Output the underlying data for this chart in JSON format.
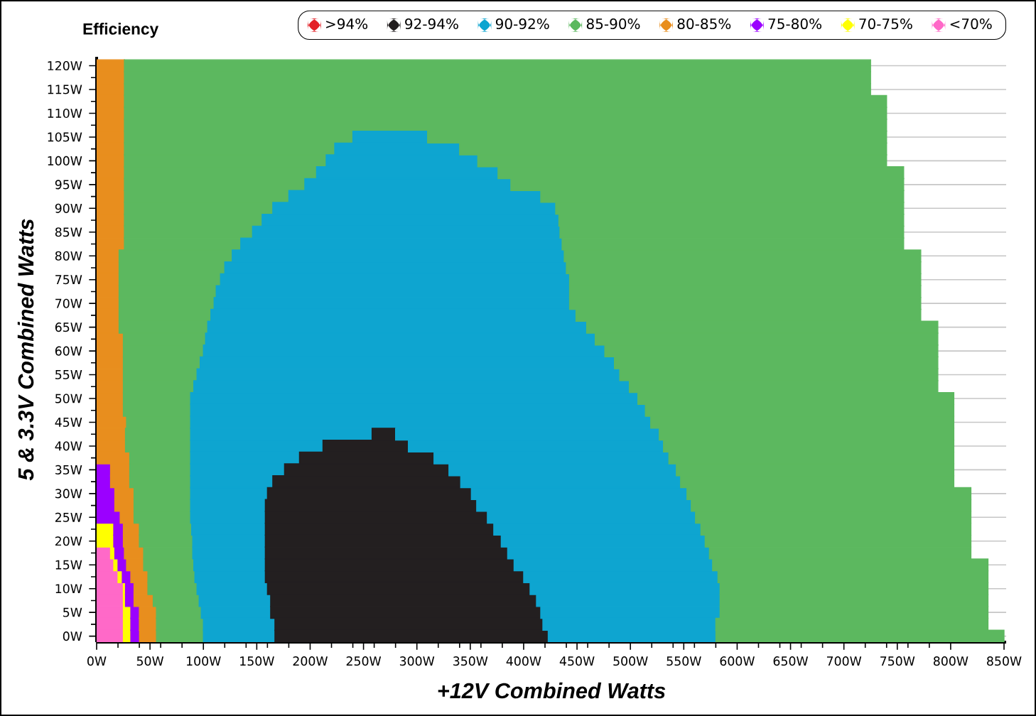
{
  "chart_data": {
    "type": "bar",
    "orientation": "horizontal",
    "stacked": true,
    "title": "Efficiency",
    "xlabel": "+12V Combined Watts",
    "ylabel": "5 & 3.3V Combined Watts",
    "categories": [
      "120W",
      null,
      "115W",
      null,
      "110W",
      null,
      "105W",
      null,
      "100W",
      null,
      "95W",
      null,
      "90W",
      null,
      "85W",
      null,
      "80W",
      null,
      "75W",
      null,
      "70W",
      null,
      "65W",
      null,
      "60W",
      null,
      "55W",
      null,
      "50W",
      null,
      "45W",
      null,
      "40W",
      null,
      "35W",
      null,
      "30W",
      null,
      "25W",
      null,
      "20W",
      null,
      "15W",
      null,
      "10W",
      null,
      "5W",
      null,
      "0W"
    ],
    "xlim": [
      0,
      852
    ],
    "xticks": [
      {
        "value": 0,
        "label": "0W"
      },
      {
        "value": 50,
        "label": "50W"
      },
      {
        "value": 100,
        "label": "100W"
      },
      {
        "value": 150,
        "label": "150W"
      },
      {
        "value": 200,
        "label": "200W"
      },
      {
        "value": 250,
        "label": "250W"
      },
      {
        "value": 300,
        "label": "300W"
      },
      {
        "value": 350,
        "label": "350W"
      },
      {
        "value": 400,
        "label": "400W"
      },
      {
        "value": 450,
        "label": "450W"
      },
      {
        "value": 500,
        "label": "500W"
      },
      {
        "value": 550,
        "label": "550W"
      },
      {
        "value": 600,
        "label": "600W"
      },
      {
        "value": 650,
        "label": "650W"
      },
      {
        "value": 700,
        "label": "700W"
      },
      {
        "value": 750,
        "label": "750W"
      },
      {
        "value": 800,
        "label": "800W"
      },
      {
        "value": 850,
        "label": "850W"
      }
    ],
    "grid": "y",
    "legend": "top right",
    "series": [
      {
        "name": "<70%",
        "color": "#ff69c8",
        "values": [
          null,
          null,
          null,
          null,
          null,
          null,
          null,
          null,
          null,
          null,
          null,
          null,
          null,
          null,
          null,
          null,
          null,
          null,
          null,
          null,
          null,
          null,
          null,
          null,
          null,
          null,
          null,
          null,
          null,
          null,
          null,
          null,
          null,
          null,
          null,
          null,
          null,
          null,
          null,
          null,
          null,
          13,
          16,
          20,
          25,
          25,
          25,
          25,
          25
        ]
      },
      {
        "name": "70-75%",
        "color": "#ffff00",
        "values": [
          null,
          null,
          null,
          null,
          null,
          null,
          null,
          null,
          null,
          null,
          null,
          null,
          null,
          null,
          null,
          null,
          null,
          null,
          null,
          null,
          null,
          null,
          null,
          null,
          null,
          null,
          null,
          null,
          null,
          null,
          null,
          null,
          null,
          null,
          null,
          null,
          null,
          null,
          null,
          16,
          16,
          4,
          4,
          4,
          2,
          2,
          7,
          7,
          7
        ]
      },
      {
        "name": "75-80%",
        "color": "#9b00ff",
        "values": [
          null,
          null,
          null,
          null,
          null,
          null,
          null,
          null,
          null,
          null,
          null,
          null,
          null,
          null,
          null,
          null,
          null,
          null,
          null,
          null,
          null,
          null,
          null,
          null,
          null,
          null,
          null,
          null,
          null,
          null,
          null,
          null,
          null,
          null,
          13,
          13,
          17,
          17,
          22,
          9,
          9,
          9,
          8,
          8,
          8,
          8,
          8,
          8,
          8
        ]
      },
      {
        "name": "80-85%",
        "color": "#e88e1e",
        "values": [
          26,
          26,
          26,
          26,
          26,
          26,
          26,
          26,
          26,
          26,
          26,
          26,
          26,
          26,
          26,
          26,
          21,
          21,
          21,
          21,
          21,
          21,
          21,
          25,
          25,
          25,
          25,
          25,
          25,
          25,
          28,
          27,
          27,
          31,
          18,
          18,
          18,
          18,
          13,
          15,
          15,
          18,
          16,
          16,
          13,
          18,
          16,
          16,
          16
        ]
      },
      {
        "name": "85-90%",
        "color": "#5cb85f",
        "values": [
          699,
          699,
          699,
          714,
          714,
          714,
          214,
          197,
          189,
          180,
          169,
          154,
          139,
          129,
          120,
          109,
          106,
          99,
          95,
          91,
          89,
          86,
          83,
          77,
          75,
          72,
          69,
          66,
          63,
          63,
          60,
          61,
          61,
          57,
          57,
          57,
          53,
          53,
          53,
          49,
          50,
          46,
          47,
          44,
          46,
          43,
          42,
          44,
          44
        ]
      },
      {
        "name": "90-92%",
        "color": "#0ea5d0",
        "values": [
          null,
          null,
          null,
          null,
          null,
          null,
          70,
          117,
          142,
          170,
          193,
          236,
          265,
          278,
          288,
          301,
          311,
          320,
          327,
          331,
          333,
          342,
          355,
          365,
          376,
          388,
          396,
          408,
          419,
          426,
          431,
          170,
          124,
          102,
          88,
          77,
          72,
          70,
          70,
          69,
          68,
          68,
          67,
          66,
          66,
          67,
          65,
          67,
          67
        ]
      },
      {
        "name": "92-94%",
        "color": "#231f20",
        "values": [
          null,
          null,
          null,
          null,
          null,
          null,
          null,
          null,
          null,
          null,
          null,
          null,
          null,
          null,
          null,
          null,
          null,
          null,
          null,
          null,
          null,
          null,
          null,
          null,
          null,
          null,
          null,
          null,
          null,
          null,
          null,
          22,
          80,
          126,
          154,
          176,
          191,
          198,
          208,
          214,
          221,
          227,
          233,
          242,
          246,
          249,
          253,
          251,
          256
        ]
      },
      {
        "color": "#0ea5d0",
        "values": [
          null,
          null,
          null,
          null,
          null,
          null,
          null,
          null,
          null,
          null,
          null,
          null,
          null,
          null,
          null,
          null,
          null,
          null,
          null,
          null,
          null,
          null,
          null,
          null,
          null,
          null,
          null,
          null,
          null,
          null,
          null,
          247,
          239,
          220,
          213,
          206,
          202,
          201,
          195,
          194,
          191,
          189,
          186,
          182,
          178,
          172,
          168,
          162,
          157
        ]
      },
      {
        "color": "#5cb85f",
        "values": [
          null,
          null,
          null,
          null,
          null,
          null,
          430,
          400,
          383,
          380,
          368,
          340,
          326,
          323,
          322,
          320,
          334,
          332,
          329,
          329,
          329,
          323,
          329,
          321,
          312,
          303,
          298,
          289,
          296,
          289,
          284,
          276,
          272,
          267,
          260,
          256,
          266,
          262,
          258,
          253,
          249,
          245,
          258,
          253,
          251,
          251,
          251,
          255,
          270
        ]
      },
      {
        "name": ">94%",
        "color": "#e32228",
        "values": [
          null,
          null,
          null,
          null,
          null,
          null,
          null,
          null,
          null,
          null,
          null,
          null,
          null,
          null,
          null,
          null,
          null,
          null,
          null,
          null,
          null,
          null,
          null,
          null,
          null,
          null,
          null,
          null,
          null,
          null,
          null,
          null,
          null,
          null,
          null,
          null,
          null,
          null,
          null,
          null,
          null,
          null,
          null,
          null,
          null,
          null,
          null,
          null,
          null
        ]
      }
    ]
  }
}
